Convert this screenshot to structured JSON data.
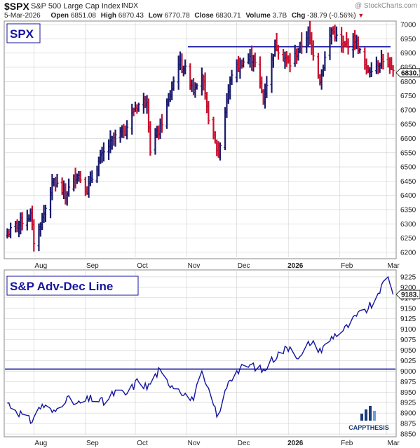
{
  "header": {
    "symbol": "$SPX",
    "name": "S&P 500 Large Cap Index",
    "exchange": "INDX",
    "watermark": "@ StockCharts.com",
    "date": "5-Mar-2026",
    "open_label": "Open",
    "open": "6851.08",
    "high_label": "High",
    "high": "6870.43",
    "low_label": "Low",
    "low": "6770.78",
    "close_label": "Close",
    "close": "6830.71",
    "volume_label": "Volume",
    "volume": "3.7B",
    "chg_label": "Chg",
    "chg": "-38.79 (-0.56%)",
    "chg_marker": "▼"
  },
  "colors": {
    "up": "#1a1a6e",
    "down": "#c8102e",
    "line": "#1414a0",
    "ref": "#1414a0",
    "grid": "#cfcfcf",
    "text": "#222222",
    "marker": "#c8102e"
  },
  "chart_data": [
    {
      "type": "ohlc",
      "title": "SPX",
      "x_tick_labels": [
        "Aug",
        "Sep",
        "Oct",
        "Nov",
        "Dec",
        "2026",
        "Feb",
        "Mar"
      ],
      "y_ticks": [
        6200,
        6250,
        6300,
        6350,
        6400,
        6450,
        6500,
        6550,
        6600,
        6650,
        6700,
        6750,
        6800,
        6850,
        6900,
        6950,
        7000
      ],
      "ylim": [
        6180,
        7010
      ],
      "last_value_label": "6830.71",
      "reference_line": 6922,
      "grid": true,
      "anchors": [
        [
          "2025-07-16",
          6263
        ],
        [
          "2025-07-22",
          6300
        ],
        [
          "2025-07-30",
          6330
        ],
        [
          "2025-08-01",
          6238
        ],
        [
          "2025-08-05",
          6300
        ],
        [
          "2025-08-13",
          6450
        ],
        [
          "2025-08-20",
          6400
        ],
        [
          "2025-08-27",
          6480
        ],
        [
          "2025-09-02",
          6420
        ],
        [
          "2025-09-10",
          6530
        ],
        [
          "2025-09-18",
          6600
        ],
        [
          "2025-09-25",
          6630
        ],
        [
          "2025-10-01",
          6710
        ],
        [
          "2025-10-08",
          6740
        ],
        [
          "2025-10-10",
          6560
        ],
        [
          "2025-10-16",
          6640
        ],
        [
          "2025-10-21",
          6730
        ],
        [
          "2025-10-27",
          6870
        ],
        [
          "2025-10-31",
          6840
        ],
        [
          "2025-11-05",
          6780
        ],
        [
          "2025-11-10",
          6830
        ],
        [
          "2025-11-13",
          6700
        ],
        [
          "2025-11-20",
          6540
        ],
        [
          "2025-11-24",
          6700
        ],
        [
          "2025-11-28",
          6830
        ],
        [
          "2025-12-05",
          6870
        ],
        [
          "2025-12-11",
          6885
        ],
        [
          "2025-12-17",
          6740
        ],
        [
          "2025-12-24",
          6930
        ],
        [
          "2026-01-02",
          6860
        ],
        [
          "2026-01-08",
          6920
        ],
        [
          "2026-01-13",
          6970
        ],
        [
          "2026-01-20",
          6810
        ],
        [
          "2026-01-27",
          6980
        ],
        [
          "2026-02-03",
          6920
        ],
        [
          "2026-02-10",
          6950
        ],
        [
          "2026-02-17",
          6840
        ],
        [
          "2026-02-23",
          6860
        ],
        [
          "2026-02-27",
          6880
        ],
        [
          "2026-03-02",
          6850
        ],
        [
          "2026-03-05",
          6831
        ]
      ]
    },
    {
      "type": "line",
      "title": "S&P Adv-Dec Line",
      "x_tick_labels": [
        "Aug",
        "Sep",
        "Oct",
        "Nov",
        "Dec",
        "2026",
        "Feb",
        "Mar"
      ],
      "y_ticks": [
        8850,
        8875,
        8900,
        8925,
        8950,
        8975,
        9000,
        9025,
        9050,
        9075,
        9100,
        9125,
        9150,
        9175,
        9200,
        9225
      ],
      "ylim": [
        8845,
        9240
      ],
      "last_value_label": "9183.",
      "reference_line": 9005,
      "grid": true,
      "anchors": [
        [
          "2025-07-16",
          8925
        ],
        [
          "2025-07-22",
          8905
        ],
        [
          "2025-07-30",
          8880
        ],
        [
          "2025-08-06",
          8920
        ],
        [
          "2025-08-13",
          8900
        ],
        [
          "2025-08-20",
          8935
        ],
        [
          "2025-08-27",
          8920
        ],
        [
          "2025-09-05",
          8935
        ],
        [
          "2025-09-12",
          8925
        ],
        [
          "2025-09-19",
          8950
        ],
        [
          "2025-09-26",
          8945
        ],
        [
          "2025-10-03",
          8980
        ],
        [
          "2025-10-08",
          8960
        ],
        [
          "2025-10-15",
          9000
        ],
        [
          "2025-10-20",
          8975
        ],
        [
          "2025-10-27",
          8960
        ],
        [
          "2025-11-04",
          8930
        ],
        [
          "2025-11-10",
          8990
        ],
        [
          "2025-11-14",
          8950
        ],
        [
          "2025-11-20",
          8890
        ],
        [
          "2025-11-26",
          8980
        ],
        [
          "2025-12-03",
          9005
        ],
        [
          "2025-12-10",
          9015
        ],
        [
          "2025-12-17",
          9000
        ],
        [
          "2025-12-24",
          9035
        ],
        [
          "2026-01-02",
          9060
        ],
        [
          "2026-01-08",
          9030
        ],
        [
          "2026-01-14",
          9070
        ],
        [
          "2026-01-21",
          9050
        ],
        [
          "2026-01-28",
          9085
        ],
        [
          "2026-02-04",
          9100
        ],
        [
          "2026-02-11",
          9130
        ],
        [
          "2026-02-18",
          9150
        ],
        [
          "2026-02-24",
          9175
        ],
        [
          "2026-02-27",
          9223
        ],
        [
          "2026-03-02",
          9215
        ],
        [
          "2026-03-05",
          9183
        ]
      ]
    }
  ],
  "logo": {
    "text": "CAPPTHESIS"
  }
}
